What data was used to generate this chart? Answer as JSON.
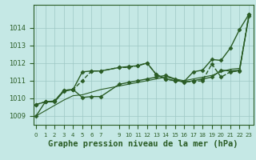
{
  "background_color": "#c5e8e5",
  "grid_color": "#9dc8c5",
  "line_color": "#2a5c25",
  "xlabel": "Graphe pression niveau de la mer (hPa)",
  "xlabel_fontsize": 7.5,
  "ylim": [
    1008.5,
    1015.3
  ],
  "yticks": [
    1009,
    1010,
    1011,
    1012,
    1013,
    1014
  ],
  "ytick_fontsize": 6,
  "xtick_labels": [
    "0",
    "1",
    "2",
    "3",
    "4",
    "5",
    "6",
    "7",
    "9",
    "10",
    "11",
    "12",
    "13",
    "14",
    "15",
    "16",
    "17",
    "18",
    "19",
    "20",
    "21",
    "22",
    "23"
  ],
  "xtick_positions": [
    0,
    1,
    2,
    3,
    4,
    5,
    6,
    7,
    9,
    10,
    11,
    12,
    13,
    14,
    15,
    16,
    17,
    18,
    19,
    20,
    21,
    22,
    23
  ],
  "xlim": [
    -0.3,
    23.5
  ],
  "series": [
    {
      "x": [
        0,
        1,
        2,
        3,
        4,
        5,
        6,
        7,
        9,
        10,
        11,
        12,
        13,
        14,
        15,
        16,
        17,
        18,
        19,
        20,
        21,
        22,
        23
      ],
      "y": [
        1009.65,
        1009.8,
        1009.8,
        1010.4,
        1010.5,
        1011.5,
        1011.55,
        1011.55,
        1011.75,
        1011.8,
        1011.85,
        1012.0,
        1011.35,
        1011.1,
        1011.0,
        1010.95,
        1011.5,
        1011.6,
        1012.2,
        1012.15,
        1012.85,
        1013.9,
        1014.75
      ],
      "style": "-",
      "marker": "D",
      "markersize": 2.5,
      "linewidth": 1.0
    },
    {
      "x": [
        0,
        1,
        2,
        3,
        4,
        5,
        6,
        7,
        9,
        10,
        11,
        12,
        13,
        14,
        15,
        16,
        17,
        18,
        19,
        20,
        21,
        22,
        23
      ],
      "y": [
        1009.65,
        1009.8,
        1009.85,
        1010.45,
        1010.5,
        1011.0,
        1011.55,
        1011.55,
        1011.75,
        1011.75,
        1011.85,
        1012.0,
        1011.35,
        1011.1,
        1011.0,
        1010.95,
        1010.95,
        1011.0,
        1011.95,
        1011.2,
        1011.5,
        1011.55,
        1014.75
      ],
      "style": "--",
      "marker": "D",
      "markersize": 2.5,
      "linewidth": 1.0
    },
    {
      "x": [
        0,
        1,
        2,
        3,
        4,
        5,
        6,
        7,
        9,
        10,
        11,
        12,
        13,
        14,
        15,
        16,
        17,
        18,
        19,
        20,
        21,
        22,
        23
      ],
      "y": [
        1009.0,
        1009.8,
        1009.85,
        1010.45,
        1010.5,
        1010.05,
        1010.1,
        1010.1,
        1010.8,
        1010.9,
        1011.0,
        1011.1,
        1011.2,
        1011.3,
        1011.1,
        1010.9,
        1011.0,
        1011.1,
        1011.2,
        1011.6,
        1011.55,
        1011.6,
        1014.65
      ],
      "style": "-",
      "marker": "D",
      "markersize": 2.5,
      "linewidth": 1.0
    },
    {
      "x": [
        0,
        1,
        2,
        3,
        4,
        5,
        6,
        7,
        9,
        10,
        11,
        12,
        13,
        14,
        15,
        16,
        17,
        18,
        19,
        20,
        21,
        22,
        23
      ],
      "y": [
        1009.0,
        1009.3,
        1009.6,
        1009.9,
        1010.15,
        1010.2,
        1010.35,
        1010.5,
        1010.7,
        1010.8,
        1010.9,
        1011.0,
        1011.1,
        1011.2,
        1011.1,
        1011.0,
        1011.1,
        1011.2,
        1011.3,
        1011.5,
        1011.65,
        1011.7,
        1014.6
      ],
      "style": "-",
      "marker": null,
      "markersize": 0,
      "linewidth": 0.8
    }
  ]
}
